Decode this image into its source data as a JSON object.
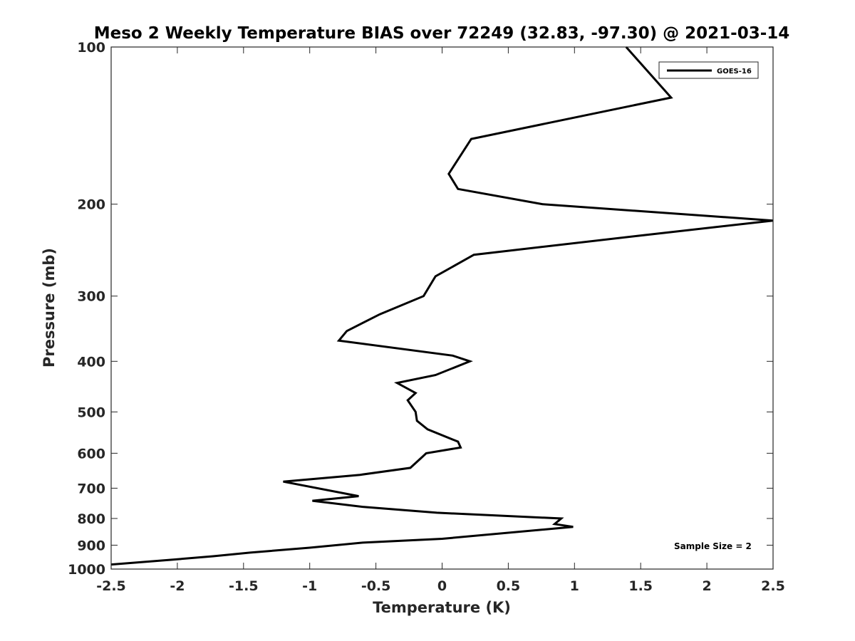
{
  "chart_data": {
    "type": "line",
    "title": "Meso 2 Weekly Temperature BIAS over 72249 (32.83, -97.30) @ 2021-03-14",
    "xlabel": "Temperature (K)",
    "ylabel": "Pressure (mb)",
    "xlim": [
      -2.5,
      2.5
    ],
    "ylim": [
      1000,
      100
    ],
    "yscale": "log",
    "x_ticks": [
      -2.5,
      -2,
      -1.5,
      -1,
      -0.5,
      0,
      0.5,
      1,
      1.5,
      2,
      2.5
    ],
    "x_tick_labels": [
      "-2.5",
      "-2",
      "-1.5",
      "-1",
      "-0.5",
      "0",
      "0.5",
      "1",
      "1.5",
      "2",
      "2.5"
    ],
    "y_ticks": [
      100,
      200,
      300,
      400,
      500,
      600,
      700,
      800,
      900,
      1000
    ],
    "y_tick_labels": [
      "100",
      "200",
      "300",
      "400",
      "500",
      "600",
      "700",
      "800",
      "900",
      "1000"
    ],
    "grid": false,
    "legend": "top-right",
    "annotation": "Sample Size = 2",
    "series": [
      {
        "name": "GOES-16",
        "color": "#000000",
        "points": [
          [
            1.39,
            100
          ],
          [
            1.73,
            125
          ],
          [
            0.22,
            150
          ],
          [
            0.05,
            175
          ],
          [
            0.12,
            187
          ],
          [
            0.76,
            200
          ],
          [
            2.5,
            215
          ],
          [
            1.48,
            230
          ],
          [
            0.24,
            250
          ],
          [
            -0.05,
            275
          ],
          [
            -0.14,
            300
          ],
          [
            -0.47,
            325
          ],
          [
            -0.72,
            350
          ],
          [
            -0.78,
            365
          ],
          [
            0.08,
            390
          ],
          [
            0.21,
            400
          ],
          [
            -0.05,
            425
          ],
          [
            -0.34,
            440
          ],
          [
            -0.2,
            460
          ],
          [
            -0.26,
            475
          ],
          [
            -0.2,
            500
          ],
          [
            -0.19,
            520
          ],
          [
            -0.11,
            540
          ],
          [
            0.12,
            570
          ],
          [
            0.14,
            585
          ],
          [
            -0.12,
            600
          ],
          [
            -0.15,
            610
          ],
          [
            -0.24,
            640
          ],
          [
            -0.62,
            660
          ],
          [
            -1.2,
            680
          ],
          [
            -0.63,
            725
          ],
          [
            -0.98,
            740
          ],
          [
            -0.6,
            760
          ],
          [
            -0.04,
            780
          ],
          [
            0.9,
            800
          ],
          [
            0.85,
            820
          ],
          [
            0.99,
            830
          ],
          [
            0.0,
            875
          ],
          [
            -0.6,
            890
          ],
          [
            -1.0,
            910
          ],
          [
            -1.45,
            930
          ],
          [
            -1.73,
            945
          ],
          [
            -2.05,
            960
          ],
          [
            -2.5,
            980
          ]
        ]
      }
    ]
  }
}
